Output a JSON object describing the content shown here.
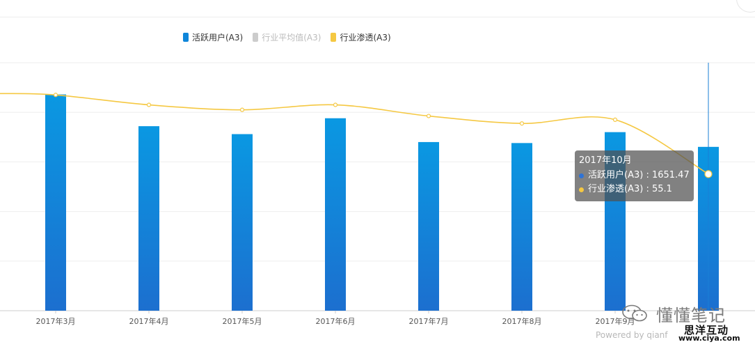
{
  "legend": [
    {
      "label": "活跃用户(A3)",
      "color": "#0f86da",
      "active": true
    },
    {
      "label": "行业平均值(A3)",
      "color": "#cccccc",
      "active": false
    },
    {
      "label": "行业渗透(A3)",
      "color": "#f5c842",
      "active": true
    }
  ],
  "tooltip": {
    "title": "2017年10月",
    "rows": [
      {
        "text": "活跃用户(A3) : 1651.47",
        "color": "#2f73d6"
      },
      {
        "text": "行业渗透(A3) : 55.1",
        "color": "#f5c842"
      }
    ]
  },
  "chart_data": {
    "type": "bar",
    "categories": [
      "2017年3月",
      "2017年4月",
      "2017年5月",
      "2017年6月",
      "2017年7月",
      "2017年8月",
      "2017年9月",
      "2017年10月"
    ],
    "tick_labels": [
      "2017年3月",
      "2017年4月",
      "2017年5月",
      "2017年6月",
      "2017年7月",
      "2017年8月",
      "2017年9月",
      ""
    ],
    "ylim": [
      0,
      2500
    ],
    "y2lim": [
      0,
      100
    ],
    "grid": true,
    "legend_position": "top-center",
    "series": [
      {
        "name": "活跃用户(A3)",
        "type": "bar",
        "color": "#0f86da",
        "values": [
          2180,
          1860,
          1780,
          1940,
          1700,
          1690,
          1800,
          1651.47
        ]
      },
      {
        "name": "行业渗透(A3)",
        "type": "line",
        "color": "#f5c842",
        "values": [
          87,
          83,
          81,
          83,
          78.5,
          75.5,
          77,
          55.1
        ]
      }
    ]
  },
  "watermark": {
    "main": "懂懂笔记",
    "brand": "思洋互动",
    "url": "www.ciya.com"
  },
  "footer": {
    "powered": "Powered by qianf"
  }
}
